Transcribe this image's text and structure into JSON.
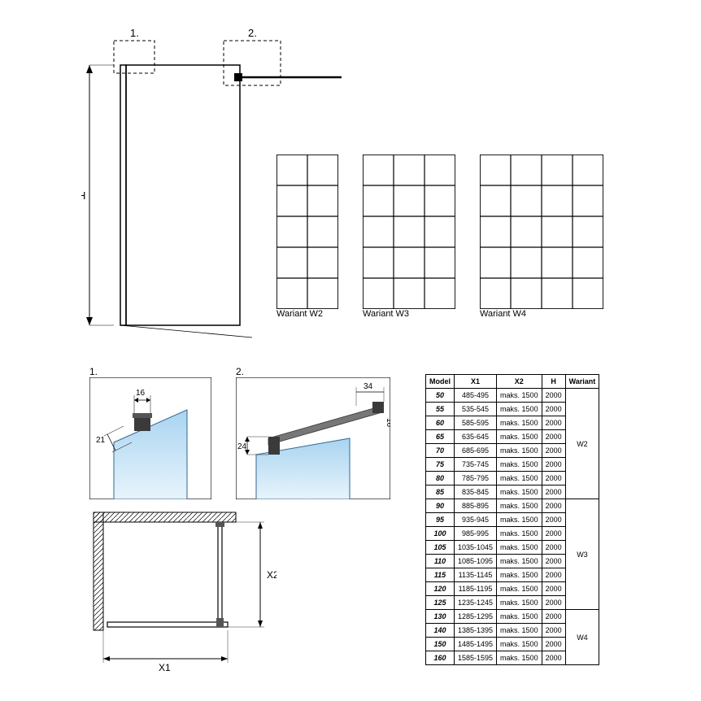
{
  "main_diagram": {
    "label_H": "H",
    "callout1": "1.",
    "callout2": "2.",
    "stroke": "#000000",
    "glass_fill": "#ffffff",
    "dim_line_color": "#000000"
  },
  "variants": {
    "w2": {
      "label": "Wariant W2",
      "cols": 2,
      "rows": 5
    },
    "w3": {
      "label": "Wariant W3",
      "cols": 3,
      "rows": 5
    },
    "w4": {
      "label": "Wariant W4",
      "cols": 4,
      "rows": 5
    },
    "grid_stroke": "#000000"
  },
  "detail1": {
    "label": "1.",
    "dim16": "16",
    "dim21": "21",
    "glass_color": "#7fb8e0",
    "bracket_color": "#4a4a4a"
  },
  "detail2": {
    "label": "2.",
    "dim24": "24",
    "dim34": "34",
    "dim16": "16",
    "glass_color": "#7fb8e0",
    "bracket_color": "#4a4a4a"
  },
  "plan_view": {
    "label_X1": "X1",
    "label_X2": "X2",
    "wall_hatch_color": "#000000"
  },
  "table": {
    "headers": [
      "Model",
      "X1",
      "X2",
      "H",
      "Wariant"
    ],
    "groups": [
      {
        "wariant": "W2",
        "rows": [
          [
            "50",
            "485-495",
            "maks. 1500",
            "2000"
          ],
          [
            "55",
            "535-545",
            "maks. 1500",
            "2000"
          ],
          [
            "60",
            "585-595",
            "maks. 1500",
            "2000"
          ],
          [
            "65",
            "635-645",
            "maks. 1500",
            "2000"
          ],
          [
            "70",
            "685-695",
            "maks. 1500",
            "2000"
          ],
          [
            "75",
            "735-745",
            "maks. 1500",
            "2000"
          ],
          [
            "80",
            "785-795",
            "maks. 1500",
            "2000"
          ],
          [
            "85",
            "835-845",
            "maks. 1500",
            "2000"
          ]
        ]
      },
      {
        "wariant": "W3",
        "rows": [
          [
            "90",
            "885-895",
            "maks. 1500",
            "2000"
          ],
          [
            "95",
            "935-945",
            "maks. 1500",
            "2000"
          ],
          [
            "100",
            "985-995",
            "maks. 1500",
            "2000"
          ],
          [
            "105",
            "1035-1045",
            "maks. 1500",
            "2000"
          ],
          [
            "110",
            "1085-1095",
            "maks. 1500",
            "2000"
          ],
          [
            "115",
            "1135-1145",
            "maks. 1500",
            "2000"
          ],
          [
            "120",
            "1185-1195",
            "maks. 1500",
            "2000"
          ],
          [
            "125",
            "1235-1245",
            "maks. 1500",
            "2000"
          ]
        ]
      },
      {
        "wariant": "W4",
        "rows": [
          [
            "130",
            "1285-1295",
            "maks. 1500",
            "2000"
          ],
          [
            "140",
            "1385-1395",
            "maks. 1500",
            "2000"
          ],
          [
            "150",
            "1485-1495",
            "maks. 1500",
            "2000"
          ],
          [
            "160",
            "1585-1595",
            "maks. 1500",
            "2000"
          ]
        ]
      }
    ]
  }
}
